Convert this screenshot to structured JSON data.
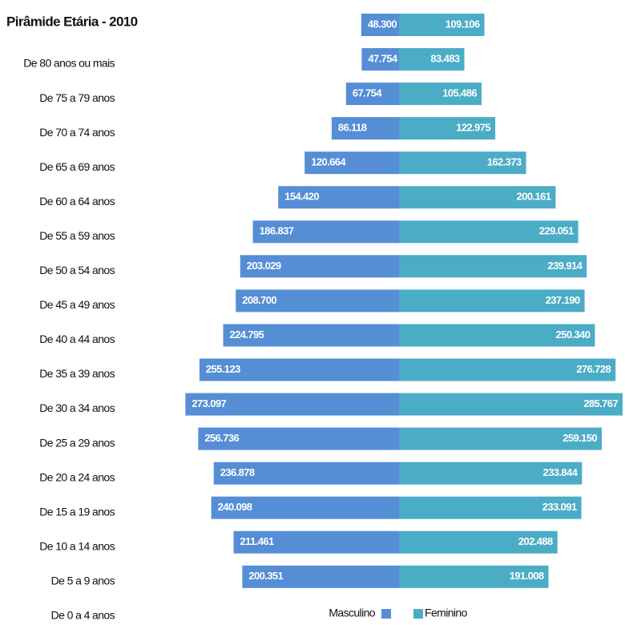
{
  "chart_data": {
    "type": "pyramid",
    "title": "Pirâmide Etária - 2010",
    "categories": [
      "De 80 anos ou mais",
      "De 75 a 79 anos",
      "De 70 a 74 anos",
      "De 65 a 69 anos",
      "De 60 a 64 anos",
      "De 55 a 59 anos",
      "De 50 a 54 anos",
      "De 45 a 49 anos",
      "De 40 a 44 anos",
      "De 35 a 39 anos",
      "De 30 a 34 anos",
      "De 25 a 29 anos",
      "De 20 a 24 anos",
      "De 15 a 19 anos",
      "De 10 a 14 anos",
      "De 5 a 9 anos",
      "De 0 a 4 anos"
    ],
    "series": [
      {
        "name": "Masculino",
        "color": "#558ed5",
        "values": [
          48300,
          47754,
          67754,
          86118,
          120664,
          154420,
          186837,
          203029,
          208700,
          224795,
          255123,
          273097,
          256736,
          236878,
          240098,
          211461,
          200351
        ],
        "value_labels": [
          "48.300",
          "47.754",
          "67.754",
          "86.118",
          "120.664",
          "154.420",
          "186.837",
          "203.029",
          "208.700",
          "224.795",
          "255.123",
          "273.097",
          "256.736",
          "236.878",
          "240.098",
          "211.461",
          "200.351"
        ]
      },
      {
        "name": "Feminino",
        "color": "#4bacc6",
        "values": [
          109106,
          83483,
          105486,
          122975,
          162373,
          200161,
          229051,
          239914,
          237190,
          250340,
          276728,
          285767,
          259150,
          233844,
          233091,
          202488,
          191008
        ],
        "value_labels": [
          "109.106",
          "83.483",
          "105.486",
          "122.975",
          "162.373",
          "200.161",
          "229.051",
          "239.914",
          "237.190",
          "250.340",
          "276.728",
          "285.767",
          "259.150",
          "233.844",
          "233.091",
          "202.488",
          "191.008"
        ]
      }
    ]
  }
}
